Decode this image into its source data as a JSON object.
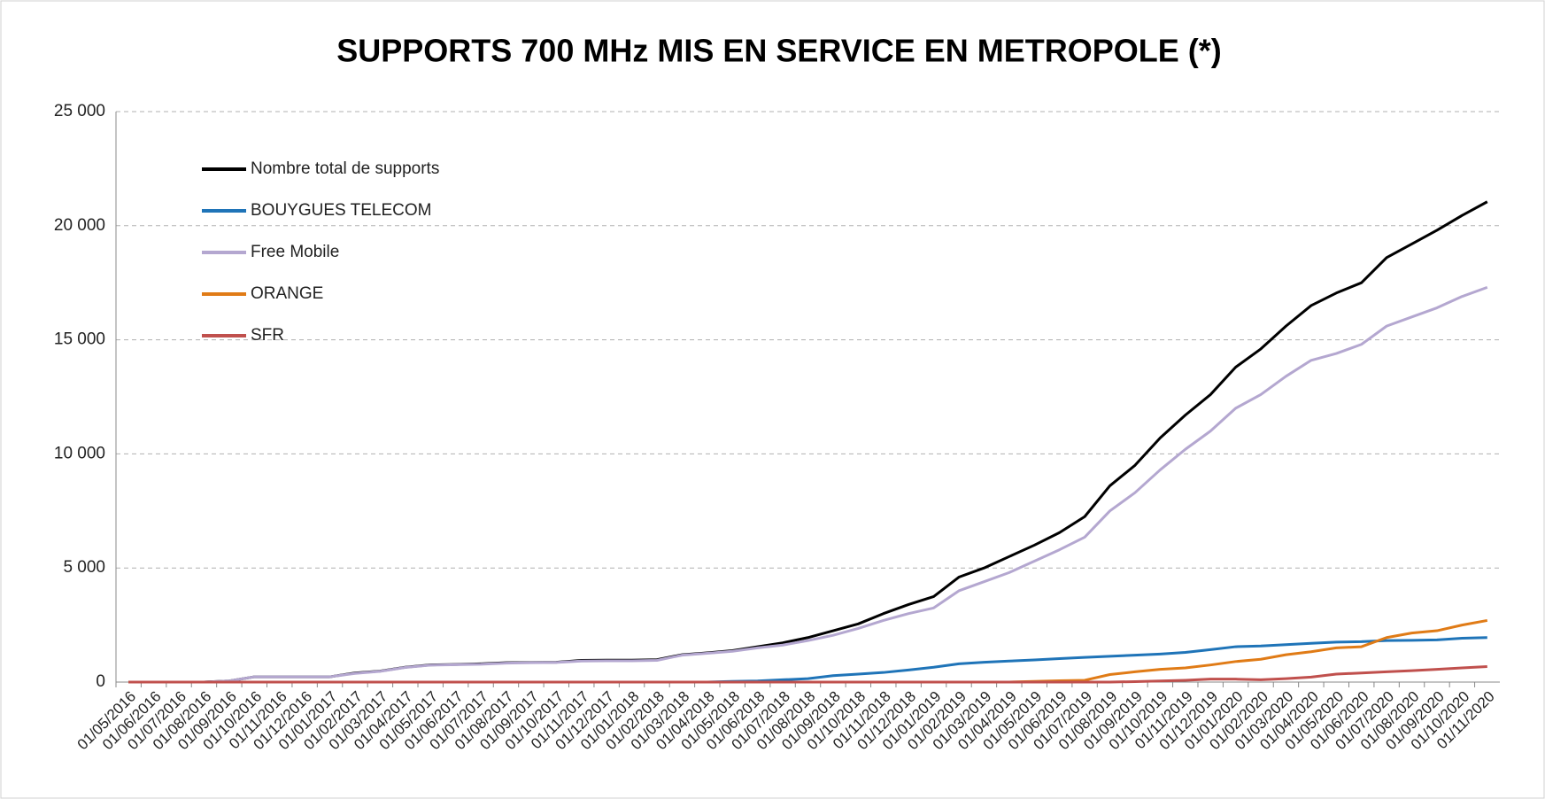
{
  "chart_data": {
    "type": "line",
    "title": "SUPPORTS 700 MHz MIS EN SERVICE EN METROPOLE (*)",
    "categories": [
      "01/05/2016",
      "01/06/2016",
      "01/07/2016",
      "01/08/2016",
      "01/09/2016",
      "01/10/2016",
      "01/11/2016",
      "01/12/2016",
      "01/01/2017",
      "01/02/2017",
      "01/03/2017",
      "01/04/2017",
      "01/05/2017",
      "01/06/2017",
      "01/07/2017",
      "01/08/2017",
      "01/09/2017",
      "01/10/2017",
      "01/11/2017",
      "01/12/2017",
      "01/01/2018",
      "01/02/2018",
      "01/03/2018",
      "01/04/2018",
      "01/05/2018",
      "01/06/2018",
      "01/07/2018",
      "01/08/2018",
      "01/09/2018",
      "01/10/2018",
      "01/11/2018",
      "01/12/2018",
      "01/01/2019",
      "01/02/2019",
      "01/03/2019",
      "01/04/2019",
      "01/05/2019",
      "01/06/2019",
      "01/07/2019",
      "01/08/2019",
      "01/09/2019",
      "01/10/2019",
      "01/11/2019",
      "01/12/2019",
      "01/01/2020",
      "01/02/2020",
      "01/03/2020",
      "01/04/2020",
      "01/05/2020",
      "01/06/2020",
      "01/07/2020",
      "01/08/2020",
      "01/09/2020",
      "01/10/2020",
      "01/11/2020"
    ],
    "series": [
      {
        "name": "Nombre total de supports",
        "color": "#000000",
        "values": [
          0,
          0,
          0,
          0,
          50,
          230,
          230,
          230,
          230,
          400,
          480,
          650,
          750,
          770,
          800,
          850,
          860,
          870,
          950,
          960,
          960,
          980,
          1200,
          1280,
          1380,
          1550,
          1720,
          1950,
          2250,
          2550,
          3000,
          3400,
          3750,
          4600,
          5000,
          5500,
          6000,
          6550,
          7250,
          8600,
          9500,
          10700,
          11700,
          12600,
          13800,
          14600,
          15600,
          16500,
          17050,
          17500,
          18600,
          19200,
          19800,
          20450,
          21050
        ]
      },
      {
        "name": "BOUYGUES TELECOM",
        "color": "#1f74b8",
        "values": [
          0,
          0,
          0,
          0,
          0,
          0,
          0,
          0,
          0,
          0,
          0,
          0,
          0,
          0,
          0,
          0,
          0,
          0,
          0,
          0,
          0,
          0,
          0,
          0,
          30,
          50,
          100,
          150,
          280,
          350,
          420,
          530,
          650,
          800,
          870,
          920,
          970,
          1030,
          1080,
          1130,
          1180,
          1230,
          1300,
          1420,
          1550,
          1580,
          1640,
          1700,
          1750,
          1770,
          1820,
          1830,
          1850,
          1920,
          1950
        ]
      },
      {
        "name": "Free Mobile",
        "color": "#b4a7d0",
        "values": [
          0,
          0,
          0,
          0,
          50,
          230,
          230,
          230,
          230,
          380,
          470,
          640,
          740,
          760,
          780,
          830,
          850,
          860,
          920,
          930,
          930,
          950,
          1180,
          1260,
          1350,
          1500,
          1620,
          1820,
          2050,
          2350,
          2700,
          3000,
          3250,
          4000,
          4400,
          4800,
          5300,
          5800,
          6350,
          7500,
          8300,
          9300,
          10200,
          11000,
          12000,
          12600,
          13400,
          14100,
          14400,
          14800,
          15600,
          16000,
          16400,
          16900,
          17300
        ]
      },
      {
        "name": "ORANGE",
        "color": "#e07b16",
        "values": [
          0,
          0,
          0,
          0,
          0,
          0,
          0,
          0,
          0,
          0,
          0,
          0,
          0,
          0,
          0,
          0,
          0,
          0,
          0,
          0,
          0,
          0,
          0,
          0,
          0,
          0,
          0,
          0,
          0,
          0,
          0,
          0,
          0,
          0,
          0,
          0,
          30,
          60,
          80,
          330,
          450,
          560,
          620,
          750,
          900,
          1000,
          1200,
          1330,
          1500,
          1550,
          1950,
          2150,
          2250,
          2500,
          2700
        ]
      },
      {
        "name": "SFR",
        "color": "#c0504d",
        "values": [
          0,
          0,
          0,
          0,
          0,
          0,
          0,
          0,
          0,
          0,
          0,
          0,
          0,
          0,
          0,
          0,
          0,
          0,
          0,
          0,
          0,
          0,
          0,
          0,
          0,
          0,
          0,
          0,
          0,
          0,
          0,
          0,
          0,
          0,
          0,
          0,
          0,
          0,
          0,
          0,
          20,
          50,
          80,
          130,
          130,
          100,
          150,
          220,
          350,
          400,
          450,
          500,
          560,
          620,
          680
        ]
      }
    ],
    "ylim": [
      0,
      25000
    ],
    "yticks": [
      0,
      {
        "value": 5000,
        "label": "5 000"
      },
      {
        "value": 10000,
        "label": "10 000"
      },
      {
        "value": 15000,
        "label": "15 000"
      },
      {
        "value": 20000,
        "label": "20 000"
      },
      {
        "value": 25000,
        "label": "25 000"
      }
    ],
    "grid": true,
    "legend": "top-left"
  }
}
